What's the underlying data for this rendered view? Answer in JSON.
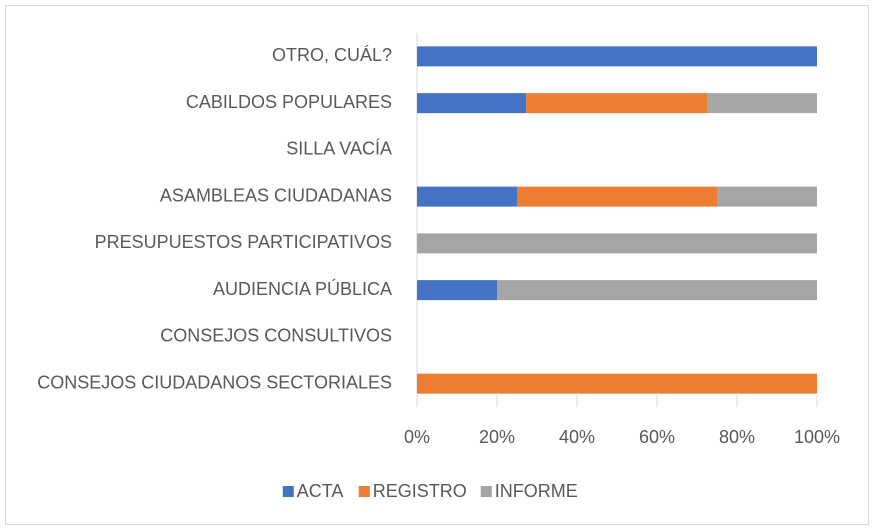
{
  "chart_data": {
    "type": "stacked_barh",
    "categories": [
      "OTRO, CUÁL?",
      "CABILDOS POPULARES",
      "SILLA VACÍA",
      "ASAMBLEAS CIUDADANAS",
      "PRESUPUESTOS PARTICIPATIVOS",
      "AUDIENCIA PÚBLICA",
      "CONSEJOS CONSULTIVOS",
      "CONSEJOS CIUDADANOS SECTORIALES"
    ],
    "series": [
      {
        "name": "ACTA",
        "color": "#4472c4",
        "values": [
          100,
          27.3,
          0,
          25,
          0,
          20,
          0,
          0
        ]
      },
      {
        "name": "REGISTRO",
        "color": "#ed7d31",
        "values": [
          0,
          45.4,
          0,
          50,
          0,
          0,
          0,
          100
        ]
      },
      {
        "name": "INFORME",
        "color": "#a5a5a5",
        "values": [
          0,
          27.3,
          0,
          25,
          100,
          80,
          0,
          0
        ]
      }
    ],
    "xlim": [
      0,
      100
    ],
    "xticks": [
      {
        "value": 0,
        "label": "0%"
      },
      {
        "value": 20,
        "label": "20%"
      },
      {
        "value": 40,
        "label": "40%"
      },
      {
        "value": 60,
        "label": "60%"
      },
      {
        "value": 80,
        "label": "80%"
      },
      {
        "value": 100,
        "label": "100%"
      }
    ],
    "grid": false,
    "legend": "bottom"
  }
}
